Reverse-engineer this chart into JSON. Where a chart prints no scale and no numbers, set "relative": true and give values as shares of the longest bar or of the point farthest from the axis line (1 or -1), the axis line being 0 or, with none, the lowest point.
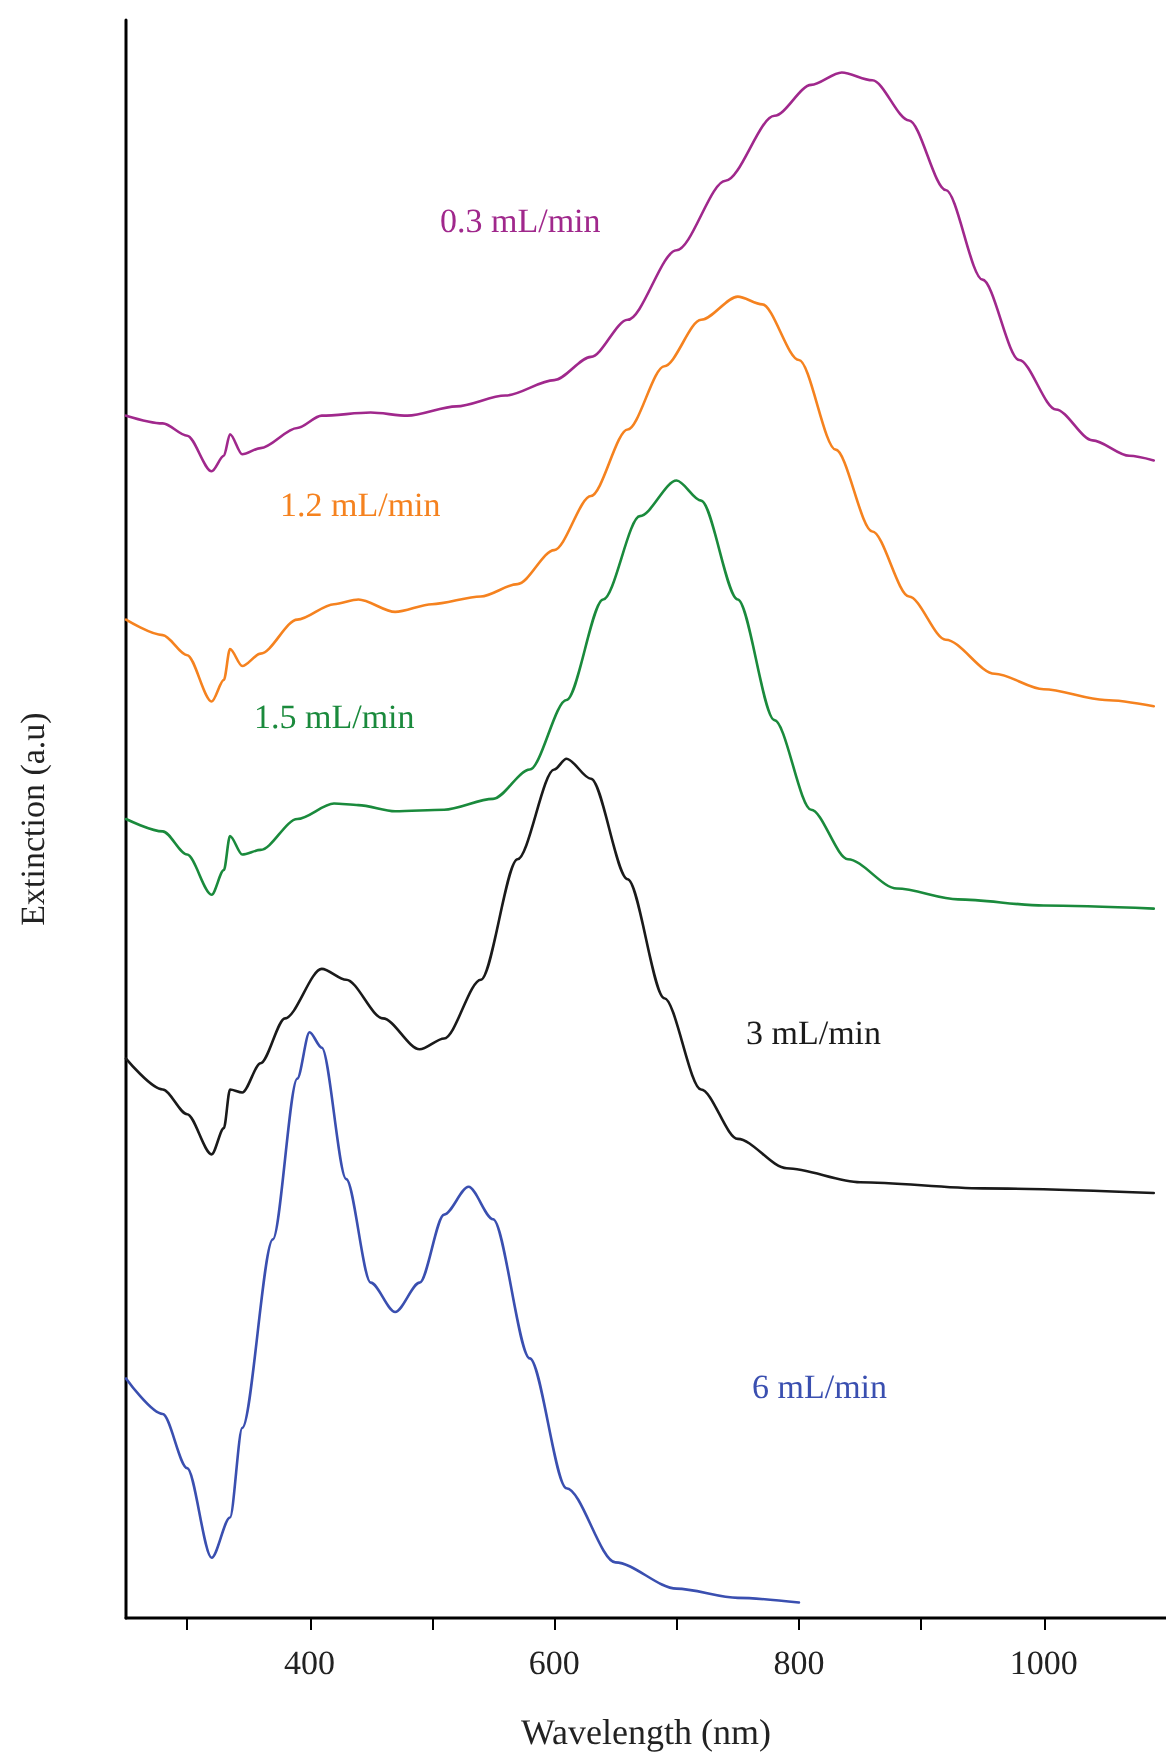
{
  "chart_data": {
    "type": "line",
    "relative": true,
    "xlabel": "Wavelength (nm)",
    "ylabel": "Extinction (a.u)",
    "xlim": [
      250,
      1100
    ],
    "xticks": [
      {
        "value": 300,
        "label": null
      },
      400,
      {
        "value": 500,
        "label": null
      },
      600,
      {
        "value": 700,
        "label": null
      },
      800,
      {
        "value": 900,
        "label": null
      },
      1000
    ],
    "tick_labels": "x",
    "grid": false,
    "legend": false,
    "marker": "none",
    "line_style": "solid",
    "series": [
      {
        "name": "0.3 mL/min",
        "color": "#a0288c",
        "x": [
          250,
          280,
          300,
          320,
          330,
          335,
          345,
          360,
          390,
          410,
          450,
          480,
          520,
          560,
          600,
          630,
          660,
          700,
          740,
          780,
          810,
          835,
          860,
          890,
          920,
          950,
          980,
          1010,
          1040,
          1070,
          1090
        ],
        "values": [
          0.778,
          0.773,
          0.765,
          0.742,
          0.752,
          0.766,
          0.753,
          0.757,
          0.77,
          0.778,
          0.78,
          0.778,
          0.784,
          0.791,
          0.801,
          0.816,
          0.84,
          0.885,
          0.93,
          0.972,
          0.992,
          1,
          0.995,
          0.969,
          0.924,
          0.866,
          0.814,
          0.782,
          0.762,
          0.752,
          0.749
        ]
      },
      {
        "name": "1.2 mL/min",
        "color": "#f5821f",
        "x": [
          250,
          280,
          300,
          320,
          330,
          335,
          345,
          360,
          390,
          420,
          440,
          470,
          500,
          540,
          570,
          600,
          630,
          660,
          690,
          720,
          750,
          770,
          800,
          830,
          860,
          890,
          920,
          960,
          1000,
          1050,
          1090
        ],
        "values": [
          0.646,
          0.636,
          0.623,
          0.593,
          0.607,
          0.627,
          0.616,
          0.624,
          0.646,
          0.656,
          0.659,
          0.651,
          0.656,
          0.661,
          0.669,
          0.691,
          0.726,
          0.769,
          0.81,
          0.84,
          0.855,
          0.85,
          0.814,
          0.756,
          0.703,
          0.661,
          0.633,
          0.611,
          0.601,
          0.594,
          0.59
        ]
      },
      {
        "name": "1.5 mL/min",
        "color": "#1a8a3c",
        "x": [
          250,
          280,
          300,
          320,
          330,
          335,
          345,
          360,
          390,
          420,
          440,
          470,
          510,
          550,
          580,
          610,
          640,
          670,
          700,
          720,
          750,
          780,
          810,
          840,
          880,
          930,
          1000,
          1090
        ],
        "values": [
          0.517,
          0.509,
          0.494,
          0.468,
          0.484,
          0.506,
          0.494,
          0.497,
          0.517,
          0.527,
          0.526,
          0.522,
          0.523,
          0.53,
          0.549,
          0.594,
          0.659,
          0.713,
          0.736,
          0.723,
          0.659,
          0.581,
          0.523,
          0.491,
          0.472,
          0.465,
          0.461,
          0.459
        ]
      },
      {
        "name": "3 mL/min",
        "color": "#1a1a1a",
        "x": [
          250,
          280,
          300,
          320,
          330,
          335,
          345,
          360,
          380,
          410,
          430,
          460,
          490,
          510,
          540,
          570,
          600,
          610,
          630,
          660,
          690,
          720,
          750,
          790,
          850,
          950,
          1090
        ],
        "values": [
          0.362,
          0.342,
          0.326,
          0.3,
          0.317,
          0.342,
          0.34,
          0.359,
          0.388,
          0.42,
          0.413,
          0.388,
          0.368,
          0.375,
          0.413,
          0.491,
          0.549,
          0.556,
          0.543,
          0.478,
          0.401,
          0.342,
          0.31,
          0.291,
          0.282,
          0.278,
          0.275
        ]
      },
      {
        "name": "6 mL/min",
        "color": "#3a4fb0",
        "x": [
          250,
          280,
          300,
          320,
          335,
          345,
          370,
          390,
          400,
          410,
          430,
          450,
          470,
          490,
          510,
          530,
          550,
          580,
          610,
          650,
          700,
          750,
          800
        ],
        "values": [
          0.155,
          0.132,
          0.097,
          0.039,
          0.065,
          0.123,
          0.245,
          0.349,
          0.379,
          0.369,
          0.284,
          0.217,
          0.198,
          0.217,
          0.261,
          0.279,
          0.258,
          0.168,
          0.084,
          0.036,
          0.019,
          0.013,
          0.01
        ]
      }
    ]
  }
}
